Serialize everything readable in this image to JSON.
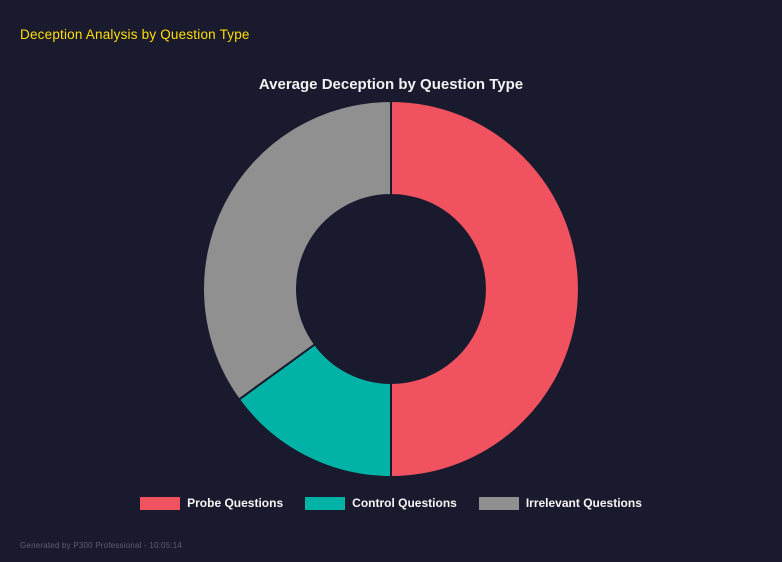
{
  "page": {
    "header_title": "Deception Analysis by Question Type",
    "footer_text": "Generated by P300 Professional - 10:05:14",
    "background": "#1a1a2e",
    "header_color": "#ffdf00"
  },
  "chart_data": {
    "type": "pie",
    "subtype": "donut",
    "title": "Average Deception by Question Type",
    "categories": [
      "Probe Questions",
      "Control Questions",
      "Irrelevant Questions"
    ],
    "values": [
      50,
      15,
      35
    ],
    "colors": [
      "#f0525f",
      "#00b3a6",
      "#909090"
    ],
    "background": "#1a1a2e",
    "inner_radius_ratio": 0.5,
    "start_angle_deg": -90,
    "direction": "clockwise",
    "legend_position": "bottom"
  }
}
